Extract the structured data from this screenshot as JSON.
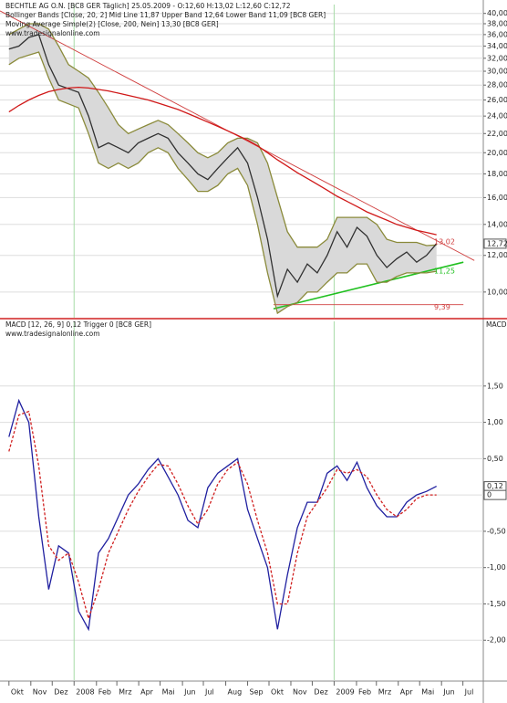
{
  "chart_data": [
    {
      "type": "line",
      "title": "BECHTLE AG O.N. [BC8 GER  Täglich] 25.05.2009 - O:12,60 H:13,02 L:12,60 C:12,72",
      "subtitles": [
        "Bollinger Bands [Close, 20, 2] Mid Line 11,87 Upper Band 12,64 Lower Band 11,09 [BC8 GER]",
        "Moving Average Simple(2) [Close, 200, Nein] 13,30 [BC8 GER]",
        "www.tradesignalonline.com"
      ],
      "log_scale": true,
      "grid": true,
      "xlim": [
        -1.8,
        95.4
      ],
      "ylim": [
        8.8,
        41.8
      ],
      "yticks": [
        {
          "value": 10,
          "label": "10,00"
        },
        {
          "value": 12,
          "label": "12,00"
        },
        {
          "value": 14,
          "label": "14,00"
        },
        {
          "value": 16,
          "label": "16,00"
        },
        {
          "value": 18,
          "label": "18,00"
        },
        {
          "value": 20,
          "label": "20,00"
        },
        {
          "value": 22,
          "label": "22,00"
        },
        {
          "value": 24,
          "label": "24,00"
        },
        {
          "value": 26,
          "label": "26,00"
        },
        {
          "value": 28,
          "label": "28,00"
        },
        {
          "value": 30,
          "label": "30,00"
        },
        {
          "value": 32,
          "label": "32,00"
        },
        {
          "value": 34,
          "label": "34,00"
        },
        {
          "value": 36,
          "label": "36,00"
        },
        {
          "value": 38,
          "label": "38,00"
        },
        {
          "value": 40,
          "label": "40,00"
        }
      ],
      "x": [
        0,
        2,
        4,
        6,
        8,
        10,
        12,
        14,
        16,
        18,
        20,
        22,
        24,
        26,
        28,
        30,
        32,
        34,
        36,
        38,
        40,
        42,
        44,
        46,
        48,
        50,
        52,
        54,
        56,
        58,
        60,
        62,
        64,
        66,
        68,
        70,
        72,
        74,
        76,
        78,
        80,
        82,
        84,
        86
      ],
      "series": [
        {
          "color": "#8a8a3a",
          "fill": "#d9d9d9",
          "values": [
            36,
            37,
            38,
            38,
            37,
            34,
            31,
            30,
            29,
            27,
            25,
            23,
            22,
            22.5,
            23,
            23.5,
            23,
            22,
            21,
            20,
            19.5,
            20,
            21,
            21.5,
            21.5,
            21,
            19,
            16,
            13.5,
            12.5,
            12.5,
            12.5,
            13,
            14.5,
            14.5,
            14.5,
            14.5,
            14,
            13,
            12.8,
            12.8,
            12.8,
            12.6,
            12.64
          ]
        },
        {
          "color": "#8a8a3a",
          "values": [
            31,
            32,
            32.5,
            33,
            29,
            26,
            25.5,
            25,
            22,
            19,
            18.5,
            19,
            18.5,
            19,
            20,
            20.5,
            20,
            18.5,
            17.5,
            16.5,
            16.5,
            17,
            18,
            18.5,
            17,
            14,
            11,
            9,
            9.3,
            9.5,
            10,
            10,
            10.5,
            11,
            11,
            11.5,
            11.5,
            10.5,
            10.5,
            10.8,
            11,
            11,
            11,
            11.09
          ]
        },
        {
          "color": "#303030",
          "values": [
            33.5,
            34,
            35.5,
            36,
            31,
            28,
            27.5,
            27,
            24,
            20.5,
            21,
            20.5,
            20,
            21,
            21.5,
            22,
            21.5,
            20,
            19,
            18,
            17.5,
            18.5,
            19.5,
            20.5,
            19,
            16,
            13,
            9.8,
            11.2,
            10.5,
            11.5,
            11,
            12,
            13.5,
            12.5,
            13.8,
            13.2,
            12,
            11.3,
            11.8,
            12.2,
            11.6,
            12,
            12.72
          ]
        },
        {
          "color": "#d01818",
          "values": [
            24.5,
            25.3,
            26,
            26.6,
            27.1,
            27.4,
            27.6,
            27.7,
            27.6,
            27.4,
            27.2,
            26.9,
            26.6,
            26.3,
            26,
            25.6,
            25.2,
            24.8,
            24.3,
            23.8,
            23.3,
            22.8,
            22.3,
            21.8,
            21.3,
            20.7,
            20,
            19.3,
            18.7,
            18.1,
            17.6,
            17.1,
            16.6,
            16.1,
            15.7,
            15.3,
            14.9,
            14.6,
            14.3,
            14,
            13.8,
            13.6,
            13.45,
            13.3
          ]
        }
      ],
      "lines": [
        {
          "color": "#d04040",
          "x": [
            -1.8,
            93.6
          ],
          "values": [
            40.5,
            11.7
          ]
        },
        {
          "color": "#20c020",
          "x": [
            53.2,
            91.4
          ],
          "values": [
            9.2,
            11.6
          ]
        },
        {
          "color": "#d04040",
          "x": [
            53.2,
            91.4
          ],
          "values": [
            9.39,
            9.39
          ]
        }
      ],
      "annotations": [
        {
          "text": "13,02",
          "value": 13.02,
          "color": "#d04040"
        },
        {
          "text": "11,25",
          "value": 11.25,
          "color": "#20c020"
        },
        {
          "text": "9,39",
          "value": 9.39,
          "color": "#d04040"
        }
      ],
      "last_values": [
        {
          "value": 12.72,
          "label": "12,72"
        }
      ]
    },
    {
      "type": "line",
      "title": "MACD [12, 26, 9] 0,12 Trigger 0 [BC8 GER]",
      "subtitles": [
        "www.tradesignalonline.com"
      ],
      "axis_label": "MACD",
      "grid": true,
      "xlim": [
        -1.8,
        95.4
      ],
      "ylim": [
        -2.55,
        2.39
      ],
      "yticks": [
        {
          "value": 1.5,
          "label": "1,50"
        },
        {
          "value": 1,
          "label": "1,00"
        },
        {
          "value": 0.5,
          "label": "0,50"
        },
        0,
        {
          "value": -0.5,
          "label": "-0,50"
        },
        {
          "value": -1,
          "label": "-1,00"
        },
        {
          "value": -1.5,
          "label": "-1,50"
        },
        {
          "value": -2,
          "label": "-2,00"
        }
      ],
      "xticks": [
        {
          "value": 0,
          "label": "Okt"
        },
        {
          "value": 4.4,
          "label": "Nov"
        },
        {
          "value": 8.7,
          "label": "Dez"
        },
        {
          "value": 13.1,
          "label": "2008"
        },
        {
          "value": 17.6,
          "label": "Feb"
        },
        {
          "value": 21.7,
          "label": "Mrz"
        },
        {
          "value": 26.1,
          "label": "Apr"
        },
        {
          "value": 30.4,
          "label": "Mai"
        },
        {
          "value": 34.9,
          "label": "Jun"
        },
        {
          "value": 39.1,
          "label": "Jul"
        },
        {
          "value": 43.6,
          "label": "Aug"
        },
        {
          "value": 48,
          "label": "Sep"
        },
        {
          "value": 52.3,
          "label": "Okt"
        },
        {
          "value": 56.7,
          "label": "Nov"
        },
        {
          "value": 61,
          "label": "Dez"
        },
        {
          "value": 65.4,
          "label": "2009"
        },
        {
          "value": 69.9,
          "label": "Feb"
        },
        {
          "value": 73.9,
          "label": "Mrz"
        },
        {
          "value": 78.3,
          "label": "Apr"
        },
        {
          "value": 82.6,
          "label": "Mai"
        },
        {
          "value": 87,
          "label": "Jun"
        },
        {
          "value": 91.3,
          "label": "Jul"
        }
      ],
      "x": [
        0,
        2,
        4,
        6,
        8,
        10,
        12,
        14,
        16,
        18,
        20,
        22,
        24,
        26,
        28,
        30,
        32,
        34,
        36,
        38,
        40,
        42,
        44,
        46,
        48,
        50,
        52,
        54,
        56,
        58,
        60,
        62,
        64,
        66,
        68,
        70,
        72,
        74,
        76,
        78,
        80,
        82,
        84,
        86
      ],
      "series": [
        {
          "color": "#2020a0",
          "values": [
            0.8,
            1.3,
            1.0,
            -0.3,
            -1.3,
            -0.7,
            -0.8,
            -1.6,
            -1.85,
            -0.8,
            -0.6,
            -0.3,
            0.0,
            0.15,
            0.35,
            0.5,
            0.25,
            0.0,
            -0.35,
            -0.45,
            0.1,
            0.3,
            0.4,
            0.5,
            -0.2,
            -0.6,
            -1.0,
            -1.85,
            -1.1,
            -0.45,
            -0.1,
            -0.1,
            0.3,
            0.4,
            0.2,
            0.45,
            0.1,
            -0.15,
            -0.3,
            -0.3,
            -0.1,
            0.0,
            0.05,
            0.12
          ]
        },
        {
          "color": "#d02020",
          "dashed": true,
          "values": [
            0.6,
            1.1,
            1.15,
            0.4,
            -0.7,
            -0.9,
            -0.8,
            -1.2,
            -1.7,
            -1.3,
            -0.8,
            -0.5,
            -0.2,
            0.05,
            0.25,
            0.42,
            0.4,
            0.15,
            -0.15,
            -0.4,
            -0.2,
            0.15,
            0.35,
            0.45,
            0.15,
            -0.35,
            -0.8,
            -1.5,
            -1.5,
            -0.8,
            -0.3,
            -0.1,
            0.1,
            0.35,
            0.3,
            0.35,
            0.25,
            0.0,
            -0.2,
            -0.3,
            -0.2,
            -0.05,
            0.0,
            0.0
          ]
        }
      ],
      "last_values": [
        {
          "value": 0.12,
          "label": "0,12"
        },
        0
      ]
    }
  ]
}
